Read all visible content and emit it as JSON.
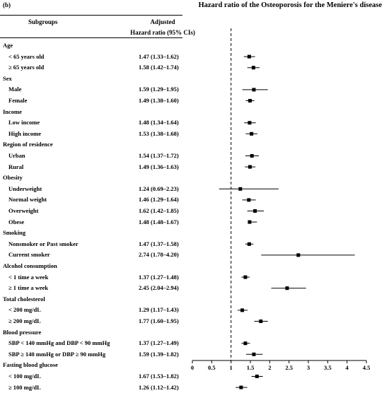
{
  "panel_label": "(b)",
  "title": "Hazard ratio of the Osteoporosis for the Meniere's disease",
  "headers": {
    "subgroups": "Subgroups",
    "adjusted_line1": "Adjusted",
    "adjusted_line2": "Hazard ratio (95% CIs)"
  },
  "chart_data": {
    "type": "forest",
    "title": "Hazard ratio of the Osteoporosis for the Meniere's disease",
    "xlim": [
      0,
      4.5
    ],
    "xticks": [
      "0",
      "0.5",
      "1",
      "1.5",
      "2",
      "2.5",
      "3",
      "3.5",
      "4",
      "4.5"
    ],
    "reference_line": 1,
    "grid": false,
    "groups": [
      {
        "name": "Age",
        "items": [
          {
            "label": "< 65 years old",
            "hr_text": "1.47 (1.33–1.62)",
            "hr": 1.47,
            "lo": 1.33,
            "hi": 1.62
          },
          {
            "label": "≥ 65 years old",
            "hr_text": "1.58 (1.42–1.74)",
            "hr": 1.58,
            "lo": 1.42,
            "hi": 1.74
          }
        ]
      },
      {
        "name": "Sex",
        "items": [
          {
            "label": "Male",
            "hr_text": "1.59 (1.29–1.95)",
            "hr": 1.59,
            "lo": 1.29,
            "hi": 1.95
          },
          {
            "label": "Female",
            "hr_text": "1.49 (1.38–1.60)",
            "hr": 1.49,
            "lo": 1.38,
            "hi": 1.6
          }
        ]
      },
      {
        "name": "Income",
        "items": [
          {
            "label": "Low income",
            "hr_text": "1.48 (1.34–1.64)",
            "hr": 1.48,
            "lo": 1.34,
            "hi": 1.64
          },
          {
            "label": "High income",
            "hr_text": "1.53 (1.38–1.68)",
            "hr": 1.53,
            "lo": 1.38,
            "hi": 1.68
          }
        ]
      },
      {
        "name": "Region of residence",
        "items": [
          {
            "label": "Urban",
            "hr_text": "1.54 (1.37–1.72)",
            "hr": 1.54,
            "lo": 1.37,
            "hi": 1.72
          },
          {
            "label": "Rural",
            "hr_text": "1.49 (1.36–1.63)",
            "hr": 1.49,
            "lo": 1.36,
            "hi": 1.63
          }
        ]
      },
      {
        "name": "Obesity",
        "items": [
          {
            "label": "Underweight",
            "hr_text": "1.24 (0.69–2.23)",
            "hr": 1.24,
            "lo": 0.69,
            "hi": 2.23
          },
          {
            "label": "Normal weight",
            "hr_text": "1.46 (1.29–1.64)",
            "hr": 1.46,
            "lo": 1.29,
            "hi": 1.64
          },
          {
            "label": "Overweight",
            "hr_text": "1.62 (1.42–1.85)",
            "hr": 1.62,
            "lo": 1.42,
            "hi": 1.85
          },
          {
            "label": "Obese",
            "hr_text": "1.48 (1.48–1.67)",
            "hr": 1.48,
            "lo": 1.48,
            "hi": 1.67
          }
        ]
      },
      {
        "name": "Smoking",
        "items": [
          {
            "label": "Nonsmoker or Past smoker",
            "hr_text": "1.47 (1.37–1.58)",
            "hr": 1.47,
            "lo": 1.37,
            "hi": 1.58
          },
          {
            "label": "Current smoker",
            "hr_text": "2.74 (1.78–4.20)",
            "hr": 2.74,
            "lo": 1.78,
            "hi": 4.2
          }
        ]
      },
      {
        "name": "Alcohol consumption",
        "items": [
          {
            "label": "< 1 time a week",
            "hr_text": "1.37 (1.27–1.48)",
            "hr": 1.37,
            "lo": 1.27,
            "hi": 1.48
          },
          {
            "label": "≥ 1 time a week",
            "hr_text": "2.45 (2.04–2.94)",
            "hr": 2.45,
            "lo": 2.04,
            "hi": 2.94
          }
        ]
      },
      {
        "name": "Total cholesterol",
        "items": [
          {
            "label": "< 200 mg/dL",
            "hr_text": "1.29 (1.17–1.43)",
            "hr": 1.29,
            "lo": 1.17,
            "hi": 1.43
          },
          {
            "label": "≥ 200 mg/dL",
            "hr_text": "1.77 (1.60–1.95)",
            "hr": 1.77,
            "lo": 1.6,
            "hi": 1.95
          }
        ]
      },
      {
        "name": "Blood pressure",
        "items": [
          {
            "label": "SBP < 140 mmHg and DBP < 90 mmHg",
            "hr_text": "1.37 (1.27–1.49)",
            "hr": 1.37,
            "lo": 1.27,
            "hi": 1.49
          },
          {
            "label": "SBP ≥ 140 mmHg or DBP ≥ 90 mmHg",
            "hr_text": "1.59 (1.39–1.82)",
            "hr": 1.59,
            "lo": 1.39,
            "hi": 1.82
          }
        ]
      },
      {
        "name": "Fasting blood glucose",
        "items": [
          {
            "label": "< 100 mg/dL",
            "hr_text": "1.67 (1.53–1.82)",
            "hr": 1.67,
            "lo": 1.53,
            "hi": 1.82
          },
          {
            "label": "≥ 100 mg/dL",
            "hr_text": "1.26 (1.12–1.42)",
            "hr": 1.26,
            "lo": 1.12,
            "hi": 1.42
          }
        ]
      }
    ]
  }
}
